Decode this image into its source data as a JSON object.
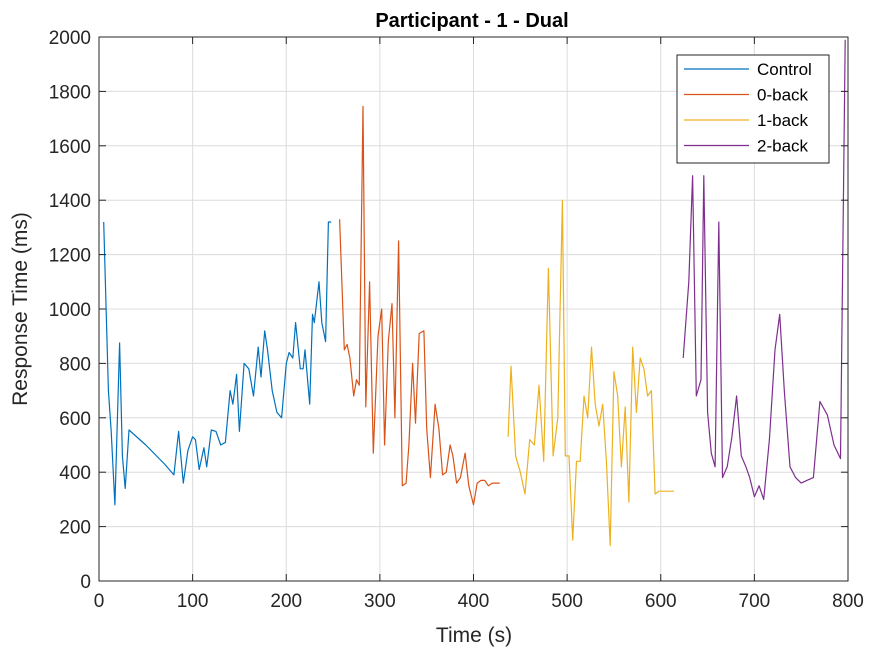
{
  "chart_data": {
    "type": "line",
    "title": "Participant - 1 - Dual",
    "xlabel": "Time (s)",
    "ylabel": "Response Time (ms)",
    "xlim": [
      0,
      800
    ],
    "ylim": [
      0,
      2000
    ],
    "xticks": [
      0,
      100,
      200,
      300,
      400,
      500,
      600,
      700,
      800
    ],
    "yticks": [
      0,
      200,
      400,
      600,
      800,
      1000,
      1200,
      1400,
      1600,
      1800,
      2000
    ],
    "grid": true,
    "legend_position": "top-right",
    "series": [
      {
        "name": "Control",
        "color": "#0072BD",
        "x": [
          5,
          10,
          13,
          17,
          22,
          25,
          28,
          32,
          50,
          70,
          80,
          85,
          90,
          95,
          100,
          103,
          107,
          112,
          115,
          120,
          125,
          130,
          135,
          140,
          143,
          147,
          150,
          155,
          160,
          165,
          170,
          173,
          177,
          180,
          185,
          190,
          195,
          200,
          203,
          207,
          210,
          215,
          218,
          220,
          225,
          228,
          230,
          235,
          238,
          242,
          245,
          248
        ],
        "y": [
          1320,
          700,
          550,
          280,
          875,
          460,
          340,
          555,
          500,
          430,
          390,
          550,
          360,
          480,
          530,
          520,
          410,
          490,
          420,
          555,
          550,
          500,
          510,
          700,
          650,
          760,
          550,
          800,
          780,
          680,
          860,
          750,
          920,
          850,
          700,
          620,
          600,
          800,
          840,
          820,
          950,
          780,
          780,
          850,
          650,
          980,
          950,
          1100,
          950,
          880,
          1320,
          1320
        ]
      },
      {
        "name": "0-back",
        "color": "#D95319",
        "x": [
          257,
          262,
          265,
          268,
          272,
          275,
          278,
          282,
          285,
          289,
          293,
          298,
          302,
          305,
          309,
          313,
          316,
          320,
          324,
          328,
          331,
          335,
          338,
          342,
          347,
          350,
          354,
          359,
          363,
          367,
          371,
          375,
          378,
          382,
          386,
          391,
          395,
          400,
          404,
          408,
          412,
          416,
          420,
          424,
          428
        ],
        "y": [
          1330,
          850,
          870,
          820,
          680,
          740,
          720,
          1745,
          640,
          1100,
          470,
          900,
          1000,
          500,
          880,
          1020,
          600,
          1250,
          350,
          360,
          500,
          800,
          580,
          910,
          920,
          560,
          380,
          650,
          560,
          390,
          400,
          500,
          460,
          360,
          380,
          470,
          350,
          280,
          360,
          370,
          370,
          350,
          360,
          360,
          360
        ]
      },
      {
        "name": "1-back",
        "color": "#EDB120",
        "x": [
          437,
          440,
          445,
          450,
          455,
          460,
          465,
          470,
          475,
          480,
          485,
          490,
          495,
          498,
          502,
          506,
          510,
          514,
          518,
          522,
          526,
          530,
          534,
          538,
          542,
          546,
          550,
          554,
          558,
          562,
          566,
          570,
          574,
          578,
          582,
          586,
          590,
          594,
          598,
          602,
          606,
          610,
          614
        ],
        "y": [
          530,
          790,
          460,
          400,
          320,
          520,
          500,
          720,
          440,
          1150,
          460,
          600,
          1400,
          460,
          460,
          150,
          440,
          440,
          680,
          600,
          860,
          650,
          570,
          650,
          440,
          130,
          770,
          680,
          420,
          640,
          290,
          860,
          620,
          820,
          780,
          680,
          700,
          320,
          330,
          330,
          330,
          330,
          330
        ]
      },
      {
        "name": "2-back",
        "color": "#7E2F8E",
        "x": [
          624,
          630,
          634,
          638,
          643,
          646,
          650,
          654,
          658,
          662,
          666,
          671,
          676,
          681,
          686,
          691,
          695,
          700,
          705,
          710,
          716,
          722,
          727,
          732,
          738,
          744,
          750,
          756,
          763,
          770,
          778,
          785,
          792,
          797
        ],
        "y": [
          820,
          1100,
          1490,
          680,
          740,
          1490,
          620,
          470,
          420,
          1320,
          380,
          420,
          530,
          680,
          460,
          420,
          380,
          310,
          350,
          300,
          520,
          850,
          980,
          700,
          420,
          380,
          360,
          370,
          380,
          660,
          610,
          500,
          450,
          1990
        ]
      }
    ]
  }
}
